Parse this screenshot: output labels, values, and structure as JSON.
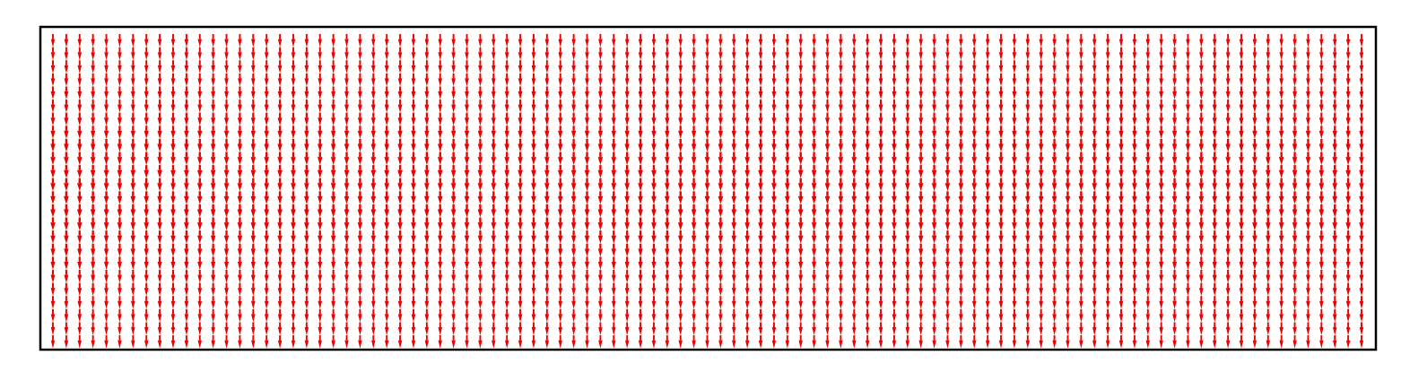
{
  "chart_data": {
    "type": "quiver",
    "title": "",
    "xlabel": "",
    "ylabel": "",
    "axes_visible": false,
    "frame": true,
    "grid": false,
    "legend": "none",
    "arrow_color": "#ee0000",
    "frame_color": "#000000",
    "background": "#ffffff",
    "xlim": [
      0,
      99
    ],
    "ylim": [
      0,
      23
    ],
    "grid_size": {
      "cols": 99,
      "rows": 24
    },
    "direction": "down",
    "field": {
      "u": 0,
      "v_profile_by_row": [
        0.55,
        0.57,
        0.6,
        0.63,
        0.67,
        0.72,
        0.78,
        0.86,
        0.93,
        0.98,
        1.0,
        1.0,
        1.0,
        1.0,
        0.98,
        0.93,
        0.86,
        0.78,
        0.72,
        0.67,
        0.63,
        0.6,
        0.57,
        0.55
      ]
    }
  }
}
